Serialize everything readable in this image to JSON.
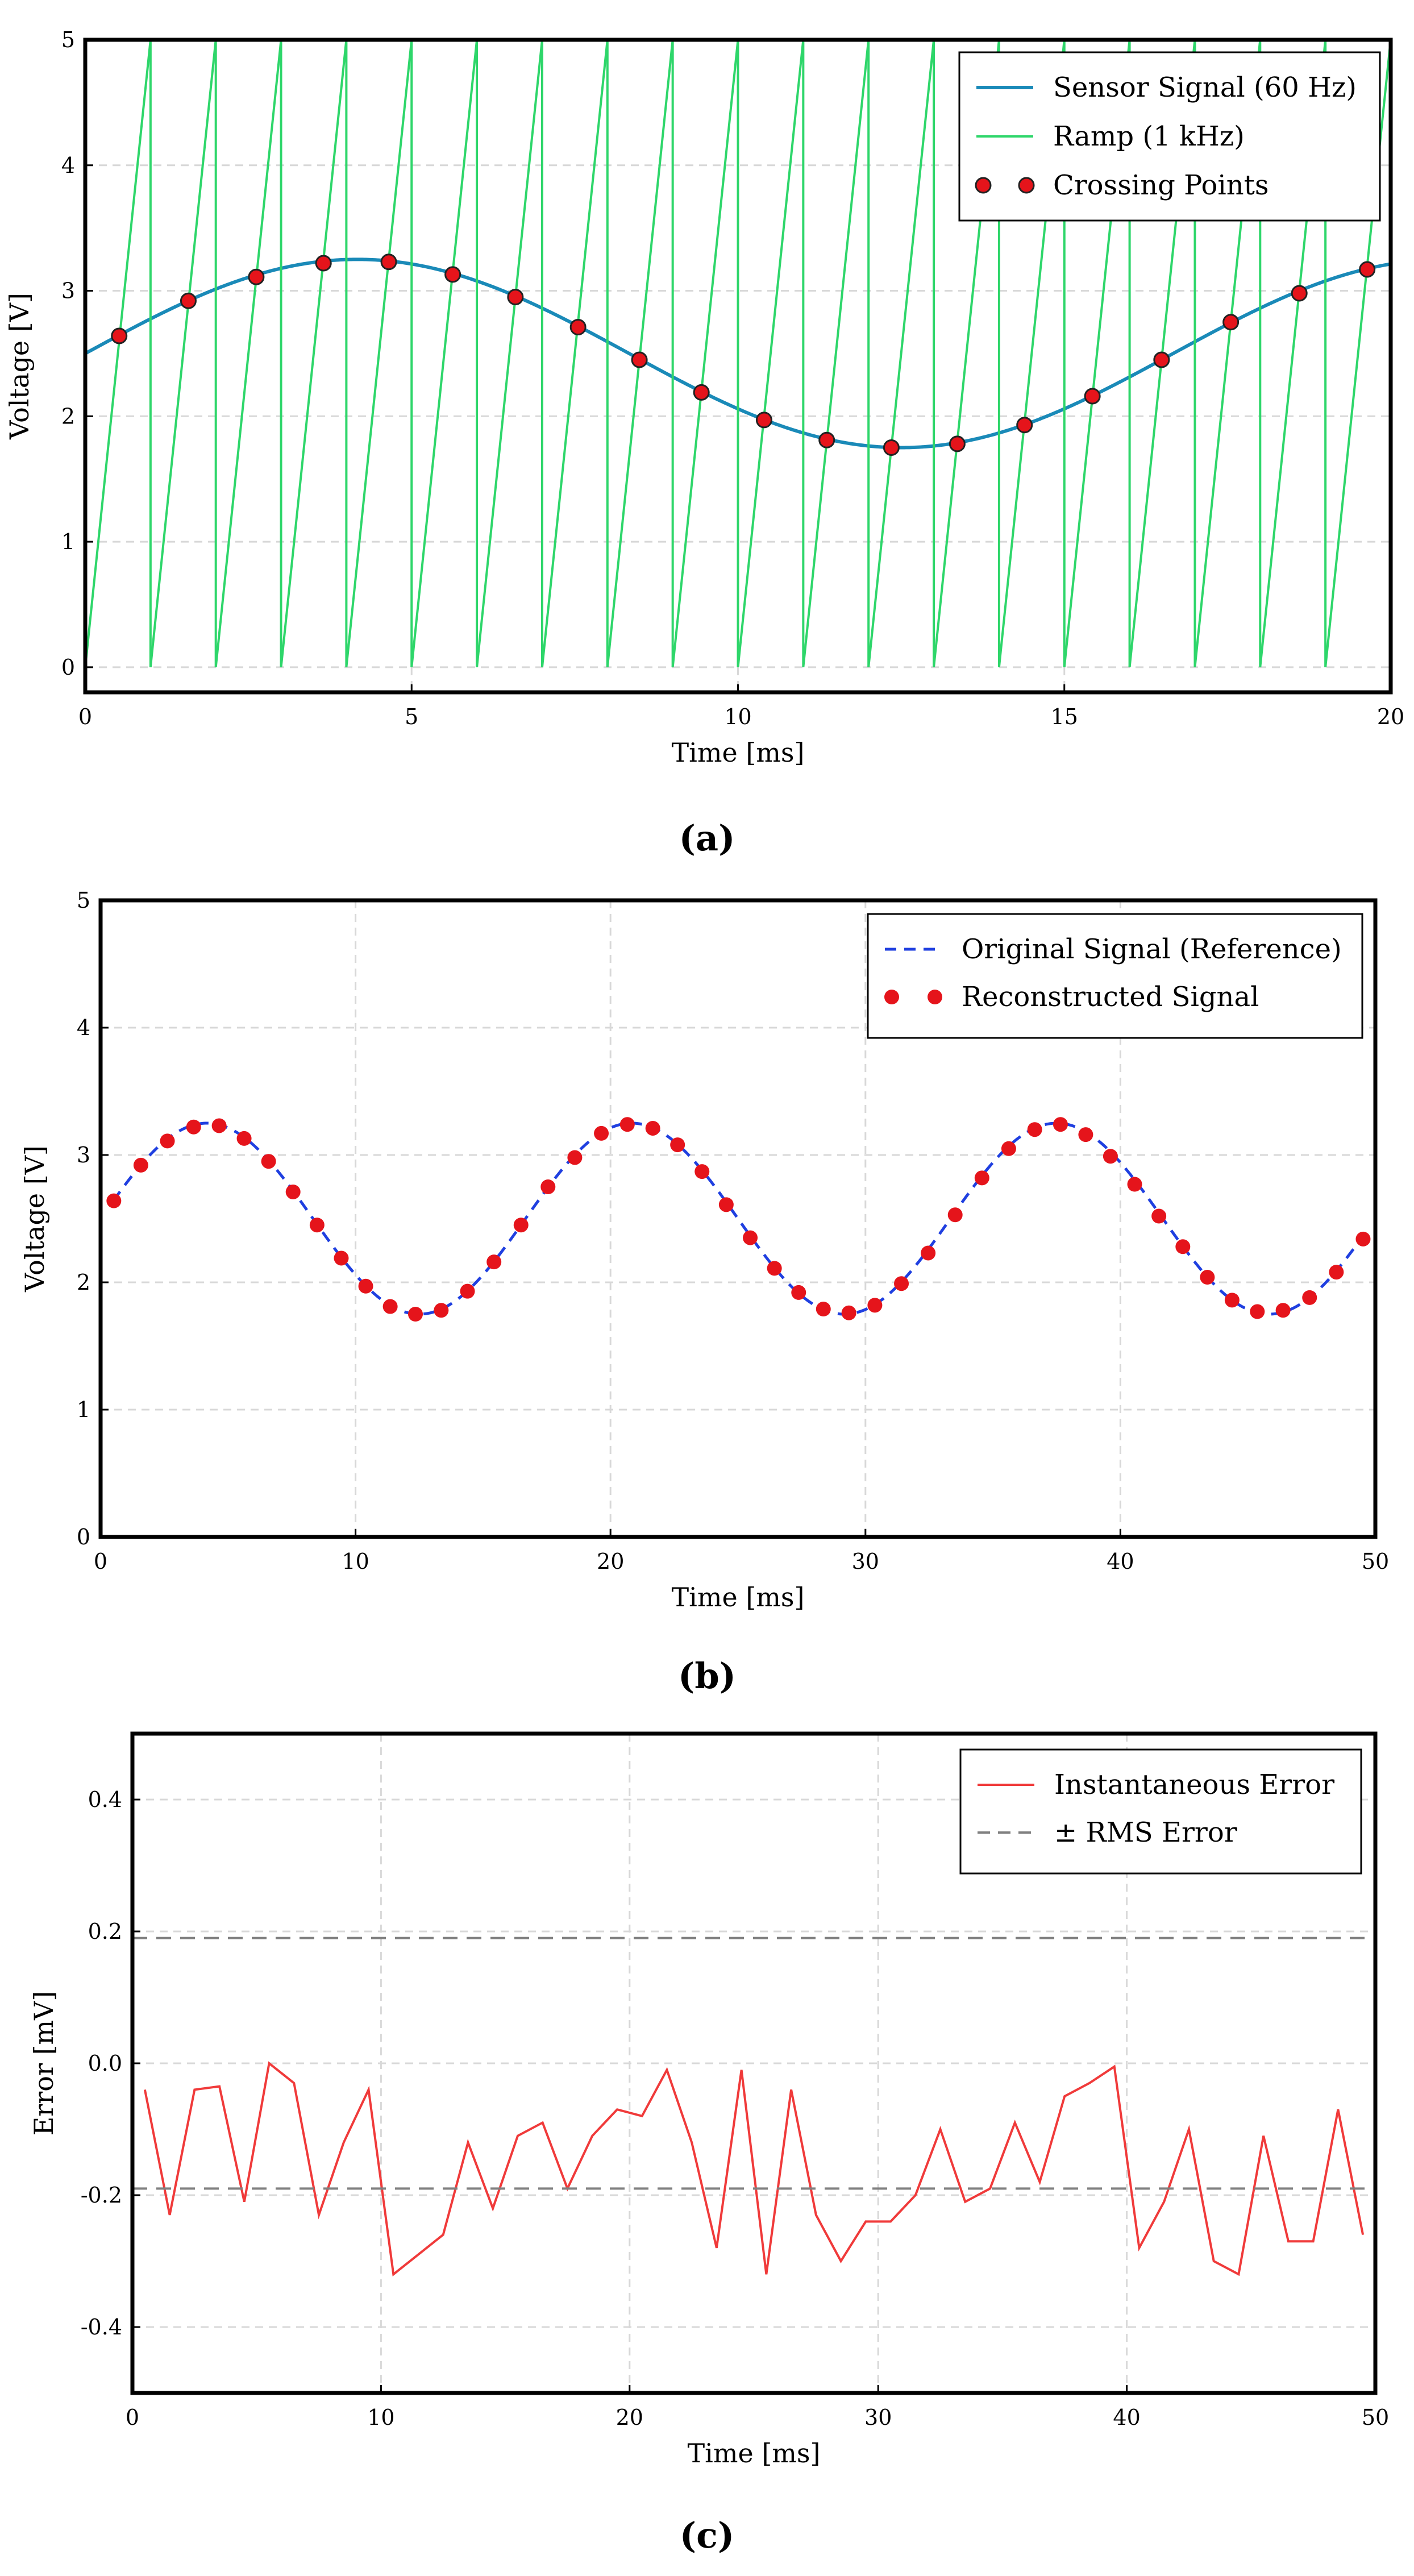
{
  "chart_data": [
    {
      "type": "line",
      "panel": "a",
      "caption": "(a)",
      "xlabel": "Time [ms]",
      "ylabel": "Voltage [V]",
      "xlim": [
        0,
        20
      ],
      "ylim": [
        -0.2,
        5.0
      ],
      "xticks": [
        0,
        5,
        10,
        15,
        20
      ],
      "yticks": [
        0,
        1,
        2,
        3,
        4,
        5
      ],
      "grid": true,
      "legend_position": "top-right",
      "colors": {
        "signal": "#1a8ab8",
        "ramp": "#2ed66a",
        "crossing": "#e5141b"
      },
      "series": [
        {
          "name": "Sensor Signal (60 Hz)",
          "kind": "line",
          "function": "2.5 + 0.75*sin(2*pi*0.06*t)",
          "x_range": [
            0,
            20
          ]
        },
        {
          "name": "Ramp (1 kHz)",
          "kind": "sawtooth",
          "period": 1,
          "low": 0,
          "high": 5,
          "x_range": [
            0,
            20
          ]
        },
        {
          "name": "Crossing Points",
          "kind": "markers",
          "x": [
            0.52,
            1.58,
            2.62,
            3.65,
            4.65,
            5.63,
            6.59,
            7.55,
            8.49,
            9.44,
            10.4,
            11.36,
            12.35,
            13.36,
            14.39,
            15.43,
            16.49,
            17.55,
            18.6,
            19.64
          ],
          "y": [
            2.64,
            2.92,
            3.11,
            3.22,
            3.23,
            3.13,
            2.95,
            2.71,
            2.45,
            2.19,
            1.97,
            1.81,
            1.75,
            1.78,
            1.93,
            2.16,
            2.45,
            2.75,
            2.98,
            3.17
          ]
        }
      ]
    },
    {
      "type": "line",
      "panel": "b",
      "caption": "(b)",
      "xlabel": "Time [ms]",
      "ylabel": "Voltage [V]",
      "xlim": [
        0,
        50
      ],
      "ylim": [
        0,
        5
      ],
      "xticks": [
        0,
        10,
        20,
        30,
        40,
        50
      ],
      "yticks": [
        0,
        1,
        2,
        3,
        4,
        5
      ],
      "grid": true,
      "legend_position": "top-right",
      "colors": {
        "reference": "#1f3fe0",
        "reconstructed": "#e5141b"
      },
      "series": [
        {
          "name": "Original Signal (Reference)",
          "kind": "dashed-line",
          "function": "2.5 + 0.75*sin(2*pi*0.06*t)",
          "x_range": [
            0.5,
            49.5
          ]
        },
        {
          "name": "Reconstructed Signal",
          "kind": "markers",
          "x": [
            0.52,
            1.58,
            2.62,
            3.65,
            4.65,
            5.63,
            6.59,
            7.55,
            8.49,
            9.44,
            10.4,
            11.36,
            12.35,
            13.36,
            14.39,
            15.43,
            16.49,
            17.55,
            18.6,
            19.64,
            20.66,
            21.66,
            22.63,
            23.59,
            24.54,
            25.48,
            26.43,
            27.38,
            28.35,
            29.35,
            30.37,
            31.41,
            32.46,
            33.52,
            34.57,
            35.62,
            36.64,
            37.65,
            38.64,
            39.61,
            40.56,
            41.51,
            42.45,
            43.41,
            44.38,
            45.37,
            46.38,
            47.42,
            48.47,
            49.52
          ],
          "y": [
            2.64,
            2.92,
            3.11,
            3.22,
            3.23,
            3.13,
            2.95,
            2.71,
            2.45,
            2.19,
            1.97,
            1.81,
            1.75,
            1.78,
            1.93,
            2.16,
            2.45,
            2.75,
            2.98,
            3.17,
            3.24,
            3.21,
            3.08,
            2.87,
            2.61,
            2.35,
            2.11,
            1.92,
            1.79,
            1.76,
            1.82,
            1.99,
            2.23,
            2.53,
            2.82,
            3.05,
            3.2,
            3.24,
            3.16,
            2.99,
            2.77,
            2.52,
            2.28,
            2.04,
            1.86,
            1.77,
            1.78,
            1.88,
            2.08,
            2.34
          ]
        }
      ]
    },
    {
      "type": "line",
      "panel": "c",
      "caption": "(c)",
      "xlabel": "Time [ms]",
      "ylabel": "Error [mV]",
      "xlim": [
        0,
        50
      ],
      "ylim": [
        -0.5,
        0.5
      ],
      "xticks": [
        0,
        10,
        20,
        30,
        40,
        50
      ],
      "yticks": [
        -0.4,
        -0.2,
        0.0,
        0.2,
        0.4
      ],
      "ytick_labels": [
        "-0.4",
        "-0.2",
        "0.0",
        "0.2",
        "0.4"
      ],
      "grid": true,
      "legend_position": "top-right",
      "colors": {
        "error": "#f03a3a",
        "rms": "#808080"
      },
      "series": [
        {
          "name": "Instantaneous Error",
          "kind": "line",
          "x": [
            0.5,
            1.5,
            2.5,
            3.5,
            4.5,
            5.5,
            6.5,
            7.5,
            8.5,
            9.5,
            10.5,
            11.5,
            12.5,
            13.5,
            14.5,
            15.5,
            16.5,
            17.5,
            18.5,
            19.5,
            20.5,
            21.5,
            22.5,
            23.5,
            24.5,
            25.5,
            26.5,
            27.5,
            28.5,
            29.5,
            30.5,
            31.5,
            32.5,
            33.5,
            34.5,
            35.5,
            36.5,
            37.5,
            38.5,
            39.5,
            40.5,
            41.5,
            42.5,
            43.5,
            44.5,
            45.5,
            46.5,
            47.5,
            48.5,
            49.5
          ],
          "y": [
            -0.04,
            -0.23,
            -0.04,
            -0.035,
            -0.21,
            0.0,
            -0.03,
            -0.23,
            -0.12,
            -0.04,
            -0.32,
            -0.29,
            -0.26,
            -0.12,
            -0.22,
            -0.11,
            -0.09,
            -0.19,
            -0.11,
            -0.07,
            -0.08,
            -0.01,
            -0.12,
            -0.28,
            -0.01,
            -0.32,
            -0.04,
            -0.23,
            -0.3,
            -0.24,
            -0.24,
            -0.2,
            -0.1,
            -0.21,
            -0.19,
            -0.09,
            -0.18,
            -0.05,
            -0.03,
            -0.005,
            -0.28,
            -0.21,
            -0.1,
            -0.3,
            -0.32,
            -0.11,
            -0.27,
            -0.27,
            -0.07,
            -0.26
          ]
        },
        {
          "name": "± RMS Error",
          "kind": "hline",
          "y": [
            0.19,
            -0.19
          ]
        }
      ]
    }
  ]
}
